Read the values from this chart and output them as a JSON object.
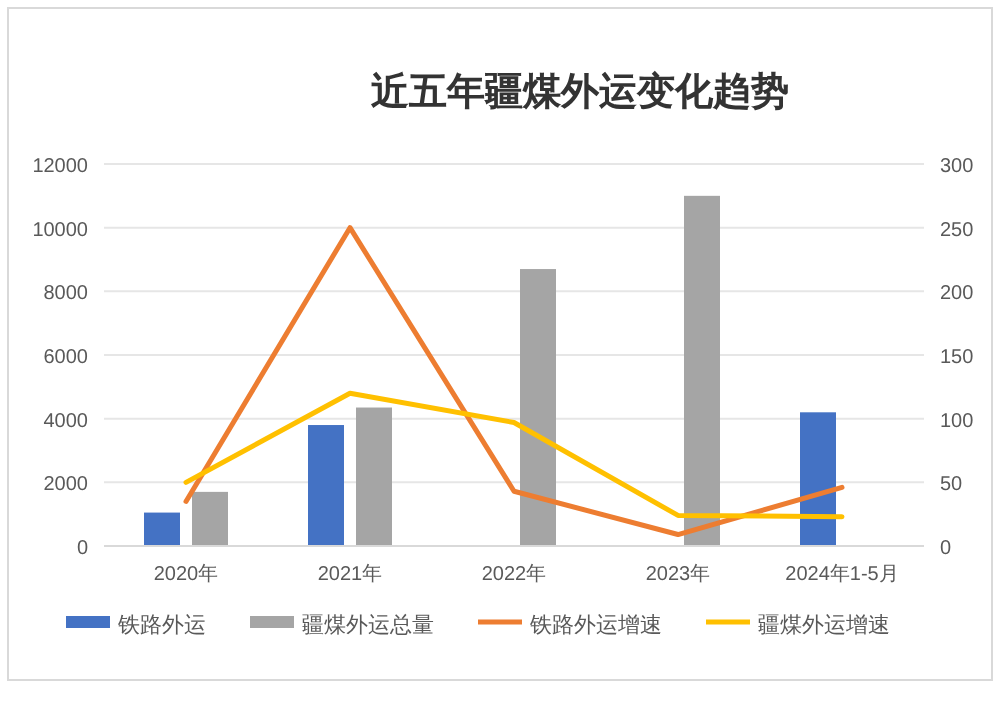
{
  "chart_data": {
    "type": "bar",
    "title": "近五年疆煤外运变化趋势",
    "categories": [
      "2020年",
      "2021年",
      "2022年",
      "2023年",
      "2024年1-5月"
    ],
    "series": [
      {
        "name": "铁路外运",
        "color": "#4472c4",
        "values": [
          1050,
          3800,
          null,
          null,
          4200
        ]
      },
      {
        "name": "疆煤外运总量",
        "color": "#a5a5a5",
        "values": [
          1700,
          4350,
          8700,
          11000,
          null
        ]
      },
      {
        "name": "铁路外运增速",
        "type": "line",
        "axis": "y2",
        "color": "#ed7d31",
        "values": [
          35,
          250,
          43,
          9,
          46
        ]
      },
      {
        "name": "疆煤外运增速",
        "type": "line",
        "axis": "y2",
        "color": "#ffc000",
        "values": [
          50,
          120,
          97,
          24,
          23
        ]
      }
    ],
    "ylim": [
      0,
      12000
    ],
    "yticks": [
      0,
      2000,
      4000,
      6000,
      8000,
      10000,
      12000
    ],
    "y2lim": [
      0,
      300
    ],
    "y2ticks": [
      0,
      50,
      100,
      150,
      200,
      250,
      300
    ],
    "grid": "y",
    "legend": "bottom"
  }
}
